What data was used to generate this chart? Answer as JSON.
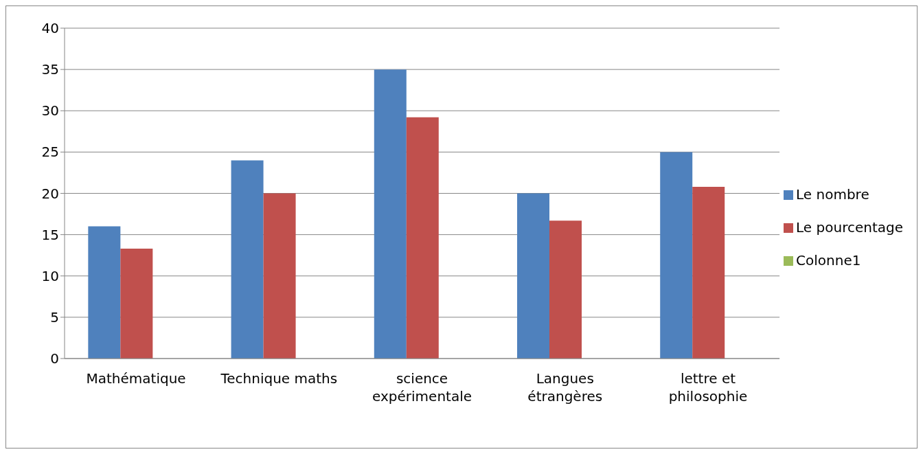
{
  "chart_data": {
    "type": "bar",
    "categories": [
      "Mathématique",
      "Technique maths",
      "science expérimentale",
      "Langues étrangères",
      "lettre et philosophie"
    ],
    "series": [
      {
        "name": "Le nombre",
        "color": "#4f81bd",
        "values": [
          16,
          24,
          35,
          20,
          25
        ]
      },
      {
        "name": "Le pourcentage",
        "color": "#c0504d",
        "values": [
          13.3,
          20,
          29.2,
          16.7,
          20.8
        ]
      },
      {
        "name": "Colonne1",
        "color": "#9bbb59",
        "values": [
          null,
          null,
          null,
          null,
          null
        ]
      }
    ],
    "ylim": [
      0,
      40
    ],
    "yticks": [
      0,
      5,
      10,
      15,
      20,
      25,
      30,
      35,
      40
    ],
    "grid": "y",
    "legend": "right"
  }
}
